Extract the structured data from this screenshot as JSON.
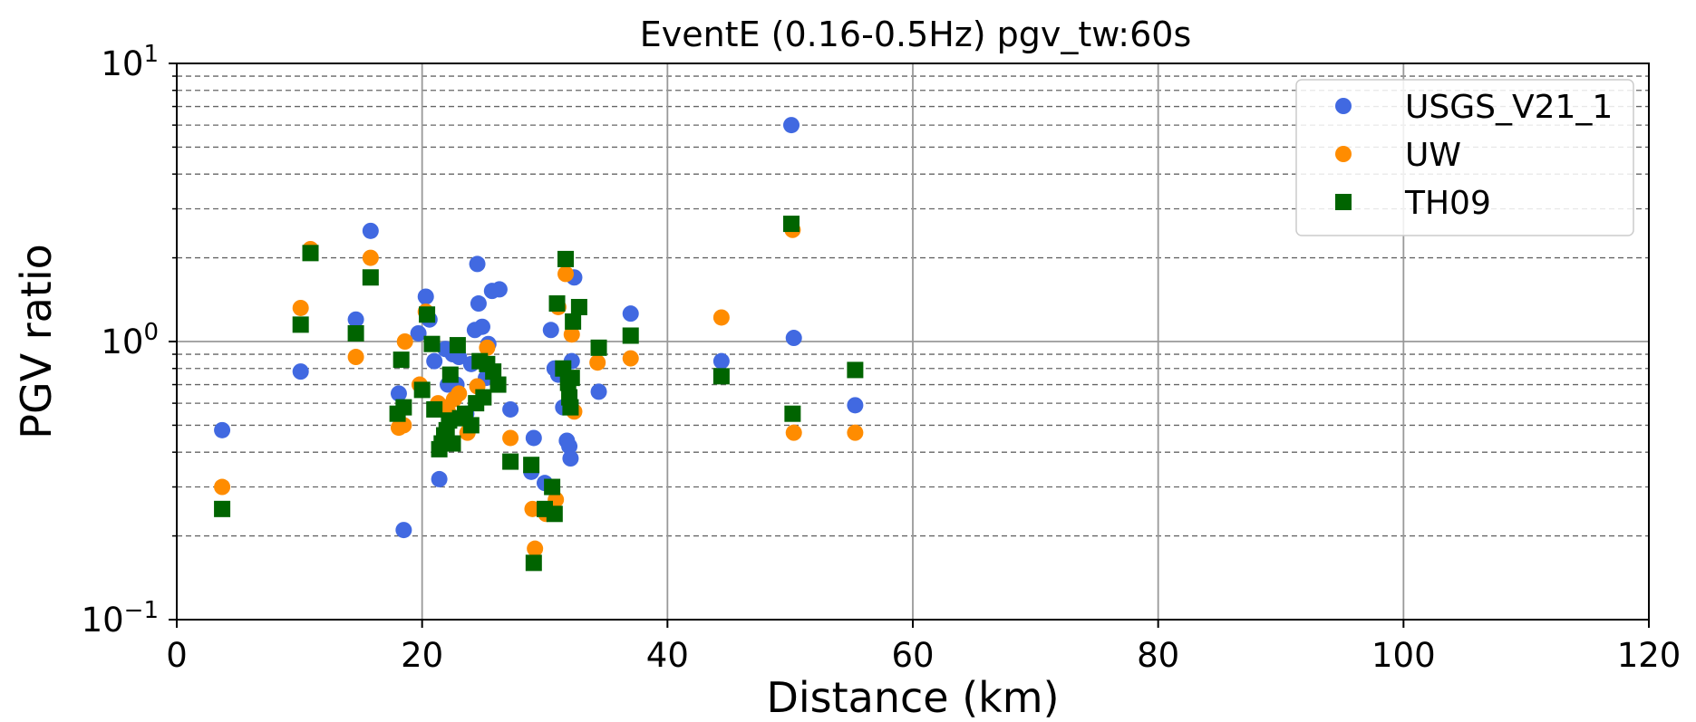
{
  "chart_data": {
    "type": "scatter",
    "title": "EventE (0.16-0.5Hz) pgv_tw:60s",
    "xlabel": "Distance (km)",
    "ylabel": "PGV ratio",
    "xlim": [
      0,
      120
    ],
    "ylim": [
      0.1,
      10
    ],
    "yscale": "log",
    "x_ticks": [
      "0",
      "20",
      "40",
      "60",
      "80",
      "100",
      "120"
    ],
    "y_ticks": [
      {
        "value": 0.1,
        "base": "10",
        "exp": "−1"
      },
      {
        "value": 1,
        "base": "10",
        "exp": "0"
      },
      {
        "value": 10,
        "base": "10",
        "exp": "1"
      }
    ],
    "grid": true,
    "legend_position": "top-right",
    "series": [
      {
        "name": "USGS_V21_1",
        "marker": "circle",
        "color": "#4169E1",
        "points": [
          [
            3.7,
            0.48
          ],
          [
            10.1,
            0.78
          ],
          [
            10.9,
            2.1
          ],
          [
            14.6,
            1.2
          ],
          [
            15.8,
            2.5
          ],
          [
            18.1,
            0.65
          ],
          [
            18.5,
            0.21
          ],
          [
            19.7,
            1.07
          ],
          [
            20.3,
            1.45
          ],
          [
            20.6,
            1.2
          ],
          [
            21.0,
            0.85
          ],
          [
            21.4,
            0.32
          ],
          [
            21.9,
            0.94
          ],
          [
            22.1,
            0.7
          ],
          [
            22.5,
            0.9
          ],
          [
            22.8,
            0.7
          ],
          [
            23.0,
            0.88
          ],
          [
            23.6,
            0.55
          ],
          [
            24.0,
            0.83
          ],
          [
            24.3,
            1.1
          ],
          [
            24.5,
            1.9
          ],
          [
            24.6,
            1.37
          ],
          [
            24.9,
            1.13
          ],
          [
            25.2,
            0.74
          ],
          [
            25.4,
            0.98
          ],
          [
            25.7,
            1.52
          ],
          [
            26.3,
            1.54
          ],
          [
            27.2,
            0.57
          ],
          [
            28.9,
            0.34
          ],
          [
            29.1,
            0.45
          ],
          [
            30.0,
            0.31
          ],
          [
            30.5,
            1.1
          ],
          [
            30.8,
            0.8
          ],
          [
            31.1,
            0.76
          ],
          [
            31.5,
            0.58
          ],
          [
            31.8,
            0.44
          ],
          [
            32.0,
            0.42
          ],
          [
            32.1,
            0.38
          ],
          [
            32.2,
            0.85
          ],
          [
            32.4,
            1.7
          ],
          [
            34.4,
            0.66
          ],
          [
            37.0,
            1.26
          ],
          [
            44.4,
            0.85
          ],
          [
            50.1,
            6.0
          ],
          [
            50.3,
            1.03
          ],
          [
            55.3,
            0.59
          ]
        ]
      },
      {
        "name": "UW",
        "marker": "circle",
        "color": "#FF8C00",
        "points": [
          [
            3.7,
            0.3
          ],
          [
            10.1,
            1.32
          ],
          [
            10.9,
            2.15
          ],
          [
            14.6,
            0.88
          ],
          [
            15.8,
            2.0
          ],
          [
            18.1,
            0.49
          ],
          [
            18.5,
            0.5
          ],
          [
            18.6,
            1.0
          ],
          [
            19.8,
            0.7
          ],
          [
            20.3,
            1.28
          ],
          [
            21.3,
            0.6
          ],
          [
            21.9,
            0.58
          ],
          [
            22.1,
            0.56
          ],
          [
            22.6,
            0.62
          ],
          [
            23.0,
            0.65
          ],
          [
            23.7,
            0.47
          ],
          [
            24.5,
            0.69
          ],
          [
            25.3,
            0.95
          ],
          [
            26.2,
            0.7
          ],
          [
            27.2,
            0.45
          ],
          [
            29.0,
            0.25
          ],
          [
            29.2,
            0.18
          ],
          [
            30.1,
            0.24
          ],
          [
            30.9,
            0.27
          ],
          [
            31.1,
            1.33
          ],
          [
            31.7,
            1.75
          ],
          [
            32.2,
            1.06
          ],
          [
            32.4,
            0.56
          ],
          [
            34.3,
            0.84
          ],
          [
            37.0,
            0.87
          ],
          [
            44.4,
            1.22
          ],
          [
            50.2,
            2.52
          ],
          [
            50.3,
            0.47
          ],
          [
            55.3,
            0.47
          ]
        ]
      },
      {
        "name": "TH09",
        "marker": "square",
        "color": "#006400",
        "points": [
          [
            3.7,
            0.25
          ],
          [
            10.1,
            1.15
          ],
          [
            10.9,
            2.08
          ],
          [
            14.6,
            1.07
          ],
          [
            15.8,
            1.7
          ],
          [
            18.0,
            0.55
          ],
          [
            18.3,
            0.86
          ],
          [
            18.5,
            0.58
          ],
          [
            20.0,
            0.67
          ],
          [
            20.4,
            1.25
          ],
          [
            20.8,
            0.98
          ],
          [
            21.0,
            0.57
          ],
          [
            21.4,
            0.41
          ],
          [
            21.6,
            0.43
          ],
          [
            21.8,
            0.46
          ],
          [
            22.0,
            0.48
          ],
          [
            22.2,
            0.52
          ],
          [
            22.3,
            0.76
          ],
          [
            22.5,
            0.43
          ],
          [
            22.9,
            0.97
          ],
          [
            23.1,
            0.53
          ],
          [
            23.5,
            0.55
          ],
          [
            24.0,
            0.5
          ],
          [
            24.4,
            0.6
          ],
          [
            24.7,
            0.85
          ],
          [
            25.0,
            0.63
          ],
          [
            25.3,
            0.83
          ],
          [
            25.8,
            0.78
          ],
          [
            26.2,
            0.7
          ],
          [
            27.2,
            0.37
          ],
          [
            28.9,
            0.36
          ],
          [
            29.1,
            0.16
          ],
          [
            30.0,
            0.25
          ],
          [
            30.6,
            0.3
          ],
          [
            30.8,
            0.24
          ],
          [
            31.0,
            1.37
          ],
          [
            31.5,
            0.8
          ],
          [
            31.7,
            1.98
          ],
          [
            31.9,
            0.71
          ],
          [
            32.0,
            0.63
          ],
          [
            32.1,
            0.58
          ],
          [
            32.2,
            0.74
          ],
          [
            32.3,
            1.18
          ],
          [
            32.8,
            1.33
          ],
          [
            34.4,
            0.95
          ],
          [
            37.0,
            1.05
          ],
          [
            44.4,
            0.75
          ],
          [
            50.1,
            2.65
          ],
          [
            50.2,
            0.55
          ],
          [
            55.3,
            0.79
          ]
        ]
      }
    ]
  }
}
